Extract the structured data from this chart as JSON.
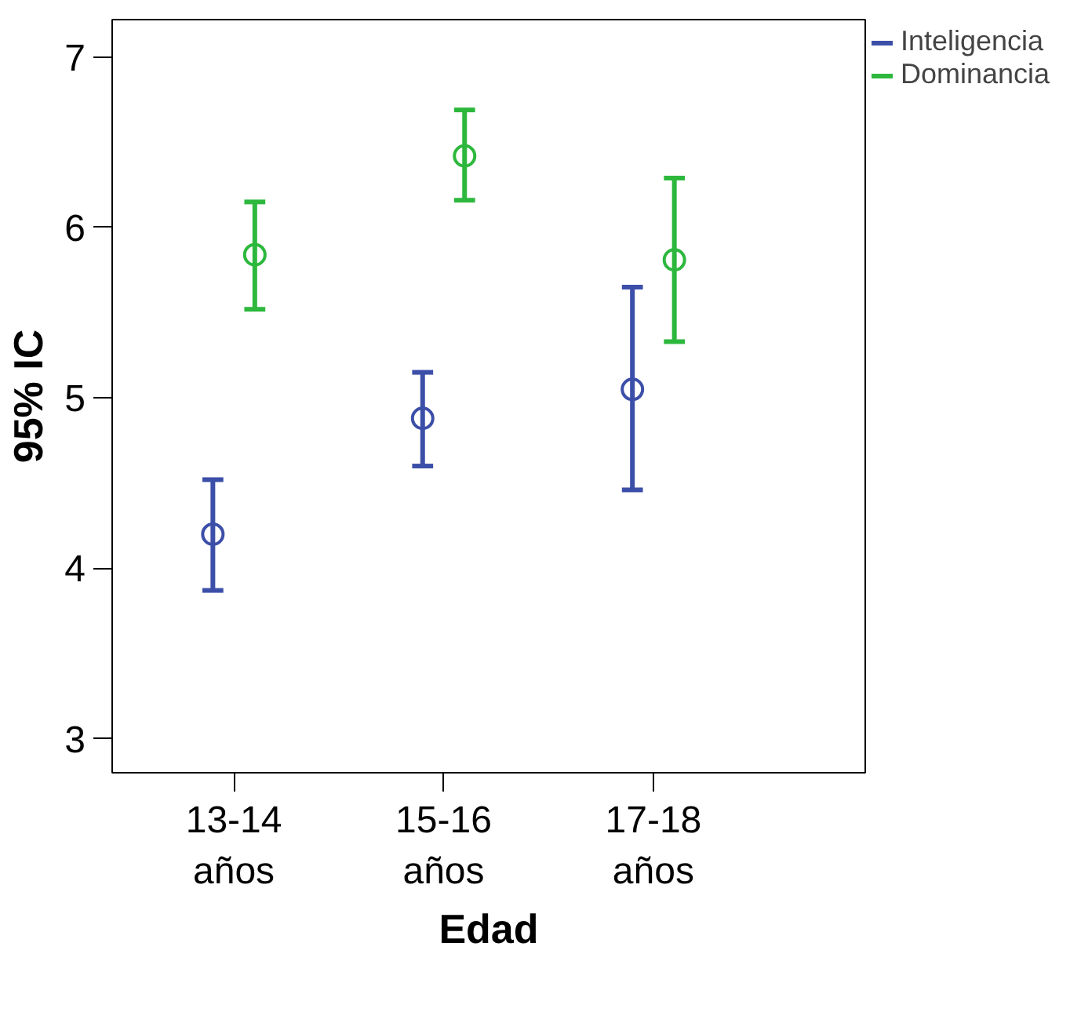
{
  "chart_data": {
    "type": "scatter",
    "xlabel": "Edad",
    "ylabel": "95% IC",
    "categories": [
      "13-14\naños",
      "15-16\naños",
      "17-18\naños"
    ],
    "series": [
      {
        "name": "Inteligencia",
        "color": "#3c4fa8",
        "values": [
          4.2,
          4.88,
          5.05
        ],
        "errors": [
          [
            3.87,
            4.52
          ],
          [
            4.6,
            5.15
          ],
          [
            4.46,
            5.65
          ]
        ]
      },
      {
        "name": "Dominancia",
        "color": "#2db83d",
        "values": [
          5.84,
          6.42,
          5.81
        ],
        "errors": [
          [
            5.52,
            6.15
          ],
          [
            6.16,
            6.69
          ],
          [
            5.33,
            6.29
          ]
        ]
      }
    ],
    "ylim": [
      2.8,
      7.22
    ],
    "yticks": [
      3,
      4,
      5,
      6,
      7
    ],
    "marker": "circle",
    "grid": false,
    "legend": "top right"
  }
}
